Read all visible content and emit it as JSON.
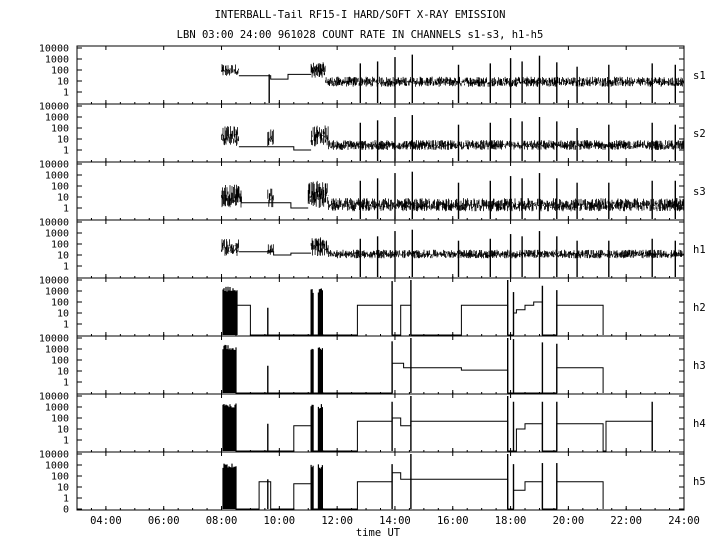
{
  "title": "INTERBALL-Tail RF15-I HARD/SOFT X-RAY EMISSION",
  "subtitle": "LBN 03:00 24:00 961028  COUNT RATE IN CHANNELS s1-s3, h1-h5",
  "chart_data": {
    "type": "line",
    "xlabel": "time UT",
    "x_range_hours": [
      3,
      24
    ],
    "x_ticks": [
      {
        "hour": 4,
        "label": "04:00"
      },
      {
        "hour": 6,
        "label": "06:00"
      },
      {
        "hour": 8,
        "label": "08:00"
      },
      {
        "hour": 10,
        "label": "10:00"
      },
      {
        "hour": 12,
        "label": "12:00"
      },
      {
        "hour": 14,
        "label": "14:00"
      },
      {
        "hour": 16,
        "label": "16:00"
      },
      {
        "hour": 18,
        "label": "18:00"
      },
      {
        "hour": 20,
        "label": "20:00"
      },
      {
        "hour": 22,
        "label": "22:00"
      },
      {
        "hour": 24,
        "label": "24:00"
      }
    ],
    "y_scale": "log",
    "y_range": [
      0.1,
      10000
    ],
    "y_ticks": [
      {
        "value": 1,
        "label": "1"
      },
      {
        "value": 10,
        "label": "10"
      },
      {
        "value": 100,
        "label": "100"
      },
      {
        "value": 1000,
        "label": "1000"
      },
      {
        "value": 10000,
        "label": "10000"
      }
    ],
    "y_tick_labels_bottom_panel": [
      {
        "value": 0.1,
        "label": "0"
      },
      {
        "value": 1,
        "label": "1"
      },
      {
        "value": 10,
        "label": "10"
      },
      {
        "value": 100,
        "label": "100"
      },
      {
        "value": 1000,
        "label": "1000"
      },
      {
        "value": 10000,
        "label": "10000"
      }
    ],
    "series": [
      {
        "name": "s1",
        "noise": [
          {
            "start": 8.0,
            "end": 8.6,
            "lo": 25,
            "hi": 350
          },
          {
            "start": 11.1,
            "end": 11.6,
            "lo": 20,
            "hi": 500
          },
          {
            "start": 11.6,
            "end": 24.0,
            "lo": 3,
            "hi": 25
          }
        ],
        "steps": [
          [
            8.6,
            30
          ],
          [
            9.6,
            30
          ],
          [
            9.7,
            15
          ],
          [
            10.3,
            40
          ],
          [
            11.1,
            40
          ]
        ],
        "spikes": [
          [
            9.65,
            40
          ],
          [
            12.8,
            400
          ],
          [
            13.4,
            600
          ],
          [
            14.0,
            1500
          ],
          [
            14.6,
            2500
          ],
          [
            16.2,
            300
          ],
          [
            17.3,
            400
          ],
          [
            18.0,
            1200
          ],
          [
            18.4,
            600
          ],
          [
            19.0,
            2000
          ],
          [
            19.6,
            500
          ],
          [
            20.3,
            200
          ],
          [
            21.4,
            300
          ],
          [
            22.9,
            400
          ],
          [
            23.7,
            300
          ]
        ]
      },
      {
        "name": "s2",
        "noise": [
          {
            "start": 8.0,
            "end": 8.6,
            "lo": 2,
            "hi": 150
          },
          {
            "start": 9.6,
            "end": 9.8,
            "lo": 2,
            "hi": 80
          },
          {
            "start": 11.1,
            "end": 11.7,
            "lo": 2,
            "hi": 200
          },
          {
            "start": 11.7,
            "end": 24.0,
            "lo": 1,
            "hi": 8
          }
        ],
        "steps": [
          [
            8.6,
            2
          ],
          [
            9.6,
            2
          ],
          [
            9.8,
            2
          ],
          [
            10.5,
            1
          ],
          [
            11.1,
            1
          ]
        ],
        "spikes": [
          [
            12.8,
            300
          ],
          [
            13.4,
            500
          ],
          [
            14.0,
            1000
          ],
          [
            14.6,
            1500
          ],
          [
            16.2,
            200
          ],
          [
            17.3,
            300
          ],
          [
            18.0,
            800
          ],
          [
            18.4,
            400
          ],
          [
            19.0,
            1000
          ],
          [
            19.6,
            400
          ],
          [
            20.3,
            100
          ],
          [
            21.4,
            200
          ],
          [
            22.9,
            300
          ],
          [
            23.7,
            200
          ]
        ]
      },
      {
        "name": "s3",
        "noise": [
          {
            "start": 8.0,
            "end": 8.7,
            "lo": 1,
            "hi": 150
          },
          {
            "start": 9.6,
            "end": 9.8,
            "lo": 1,
            "hi": 80
          },
          {
            "start": 11.0,
            "end": 11.7,
            "lo": 1,
            "hi": 300
          },
          {
            "start": 11.7,
            "end": 24.0,
            "lo": 0.5,
            "hi": 8
          }
        ],
        "steps": [
          [
            8.7,
            3
          ],
          [
            9.6,
            3
          ],
          [
            9.8,
            3
          ],
          [
            10.4,
            1
          ],
          [
            11.0,
            1
          ]
        ],
        "spikes": [
          [
            12.8,
            300
          ],
          [
            13.4,
            500
          ],
          [
            14.0,
            1500
          ],
          [
            14.6,
            2000
          ],
          [
            16.2,
            200
          ],
          [
            17.3,
            300
          ],
          [
            18.0,
            800
          ],
          [
            18.4,
            500
          ],
          [
            19.0,
            1500
          ],
          [
            19.6,
            500
          ],
          [
            20.3,
            200
          ],
          [
            21.4,
            200
          ],
          [
            22.9,
            300
          ],
          [
            23.7,
            300
          ]
        ]
      },
      {
        "name": "h1",
        "noise": [
          {
            "start": 8.0,
            "end": 8.6,
            "lo": 8,
            "hi": 300
          },
          {
            "start": 9.6,
            "end": 9.8,
            "lo": 8,
            "hi": 100
          },
          {
            "start": 11.1,
            "end": 11.7,
            "lo": 8,
            "hi": 400
          },
          {
            "start": 11.7,
            "end": 24.0,
            "lo": 5,
            "hi": 30
          }
        ],
        "steps": [
          [
            8.6,
            20
          ],
          [
            9.6,
            20
          ],
          [
            9.8,
            10
          ],
          [
            10.4,
            15
          ],
          [
            11.1,
            15
          ]
        ],
        "spikes": [
          [
            12.8,
            300
          ],
          [
            13.4,
            500
          ],
          [
            14.0,
            1500
          ],
          [
            14.6,
            2000
          ],
          [
            16.2,
            200
          ],
          [
            17.3,
            300
          ],
          [
            18.0,
            800
          ],
          [
            18.4,
            500
          ],
          [
            19.0,
            1500
          ],
          [
            19.6,
            500
          ],
          [
            20.3,
            200
          ],
          [
            21.4,
            200
          ],
          [
            22.9,
            300
          ],
          [
            23.7,
            200
          ]
        ]
      },
      {
        "name": "h2",
        "bursts": [
          {
            "start": 8.05,
            "end": 8.55,
            "lo": 0.1,
            "hi": 2500
          },
          {
            "start": 11.1,
            "end": 11.2,
            "lo": 0.1,
            "hi": 2000
          },
          {
            "start": 11.35,
            "end": 11.5,
            "lo": 0.1,
            "hi": 2000
          }
        ],
        "steps": [
          [
            8.55,
            50
          ],
          [
            9.0,
            0.1
          ],
          [
            9.6,
            0.1
          ],
          [
            11.5,
            0.1
          ],
          [
            12.7,
            50
          ],
          [
            13.9,
            0.1
          ],
          [
            14.2,
            50
          ],
          [
            14.55,
            0.1
          ],
          [
            16.3,
            50
          ],
          [
            17.9,
            0.1
          ],
          [
            18.1,
            10
          ],
          [
            18.2,
            20
          ],
          [
            18.5,
            50
          ],
          [
            18.8,
            100
          ],
          [
            19.1,
            0.1
          ],
          [
            19.6,
            50
          ],
          [
            21.2,
            0.1
          ]
        ],
        "spikes": [
          [
            9.6,
            30
          ],
          [
            13.9,
            8000
          ],
          [
            14.55,
            10000
          ],
          [
            17.9,
            10000
          ],
          [
            18.1,
            800
          ],
          [
            19.1,
            3000
          ],
          [
            19.6,
            1200
          ]
        ]
      },
      {
        "name": "h3",
        "bursts": [
          {
            "start": 8.05,
            "end": 8.5,
            "lo": 0.1,
            "hi": 2500
          },
          {
            "start": 11.1,
            "end": 11.2,
            "lo": 0.1,
            "hi": 2000
          },
          {
            "start": 11.35,
            "end": 11.5,
            "lo": 0.1,
            "hi": 2000
          }
        ],
        "steps": [
          [
            8.5,
            0.1
          ],
          [
            13.9,
            50
          ],
          [
            14.3,
            20
          ],
          [
            14.55,
            20
          ],
          [
            16.3,
            12
          ],
          [
            17.9,
            0.1
          ],
          [
            18.1,
            0.1
          ],
          [
            19.6,
            20
          ],
          [
            21.2,
            0.1
          ]
        ],
        "spikes": [
          [
            9.6,
            30
          ],
          [
            13.9,
            5000
          ],
          [
            14.55,
            10000
          ],
          [
            17.9,
            10000
          ],
          [
            18.1,
            8000
          ],
          [
            19.1,
            4000
          ],
          [
            19.6,
            3000
          ]
        ]
      },
      {
        "name": "h4",
        "bursts": [
          {
            "start": 8.05,
            "end": 8.5,
            "lo": 0.1,
            "hi": 2500
          },
          {
            "start": 11.1,
            "end": 11.2,
            "lo": 0.1,
            "hi": 2000
          },
          {
            "start": 11.35,
            "end": 11.5,
            "lo": 0.1,
            "hi": 2000
          }
        ],
        "steps": [
          [
            8.5,
            0.1
          ],
          [
            10.5,
            20
          ],
          [
            11.1,
            0.1
          ],
          [
            12.7,
            50
          ],
          [
            13.9,
            100
          ],
          [
            14.2,
            20
          ],
          [
            14.55,
            50
          ],
          [
            17.9,
            0.1
          ],
          [
            18.2,
            10
          ],
          [
            18.5,
            30
          ],
          [
            19.1,
            0.1
          ],
          [
            19.6,
            30
          ],
          [
            21.2,
            0.1
          ],
          [
            21.3,
            50
          ],
          [
            22.9,
            0.1
          ]
        ],
        "spikes": [
          [
            9.6,
            30
          ],
          [
            13.9,
            3000
          ],
          [
            14.55,
            10000
          ],
          [
            17.9,
            10000
          ],
          [
            18.1,
            3000
          ],
          [
            19.1,
            3000
          ],
          [
            19.6,
            3000
          ],
          [
            22.9,
            3000
          ]
        ]
      },
      {
        "name": "h5",
        "bursts": [
          {
            "start": 8.05,
            "end": 8.5,
            "lo": 0.1,
            "hi": 1500
          },
          {
            "start": 11.1,
            "end": 11.2,
            "lo": 0.1,
            "hi": 1500
          },
          {
            "start": 11.35,
            "end": 11.5,
            "lo": 0.1,
            "hi": 1500
          }
        ],
        "steps": [
          [
            8.5,
            0.1
          ],
          [
            9.3,
            30
          ],
          [
            9.7,
            0.1
          ],
          [
            10.5,
            20
          ],
          [
            11.1,
            0.1
          ],
          [
            12.7,
            30
          ],
          [
            13.9,
            200
          ],
          [
            14.2,
            50
          ],
          [
            14.55,
            50
          ],
          [
            16.3,
            50
          ],
          [
            17.9,
            0.1
          ],
          [
            18.1,
            5
          ],
          [
            18.5,
            30
          ],
          [
            19.1,
            0.1
          ],
          [
            19.6,
            30
          ],
          [
            21.2,
            0.1
          ]
        ],
        "spikes": [
          [
            9.6,
            50
          ],
          [
            13.9,
            1200
          ],
          [
            14.55,
            10000
          ],
          [
            17.9,
            10000
          ],
          [
            18.1,
            1200
          ],
          [
            19.1,
            1500
          ],
          [
            19.6,
            1500
          ]
        ]
      }
    ]
  }
}
